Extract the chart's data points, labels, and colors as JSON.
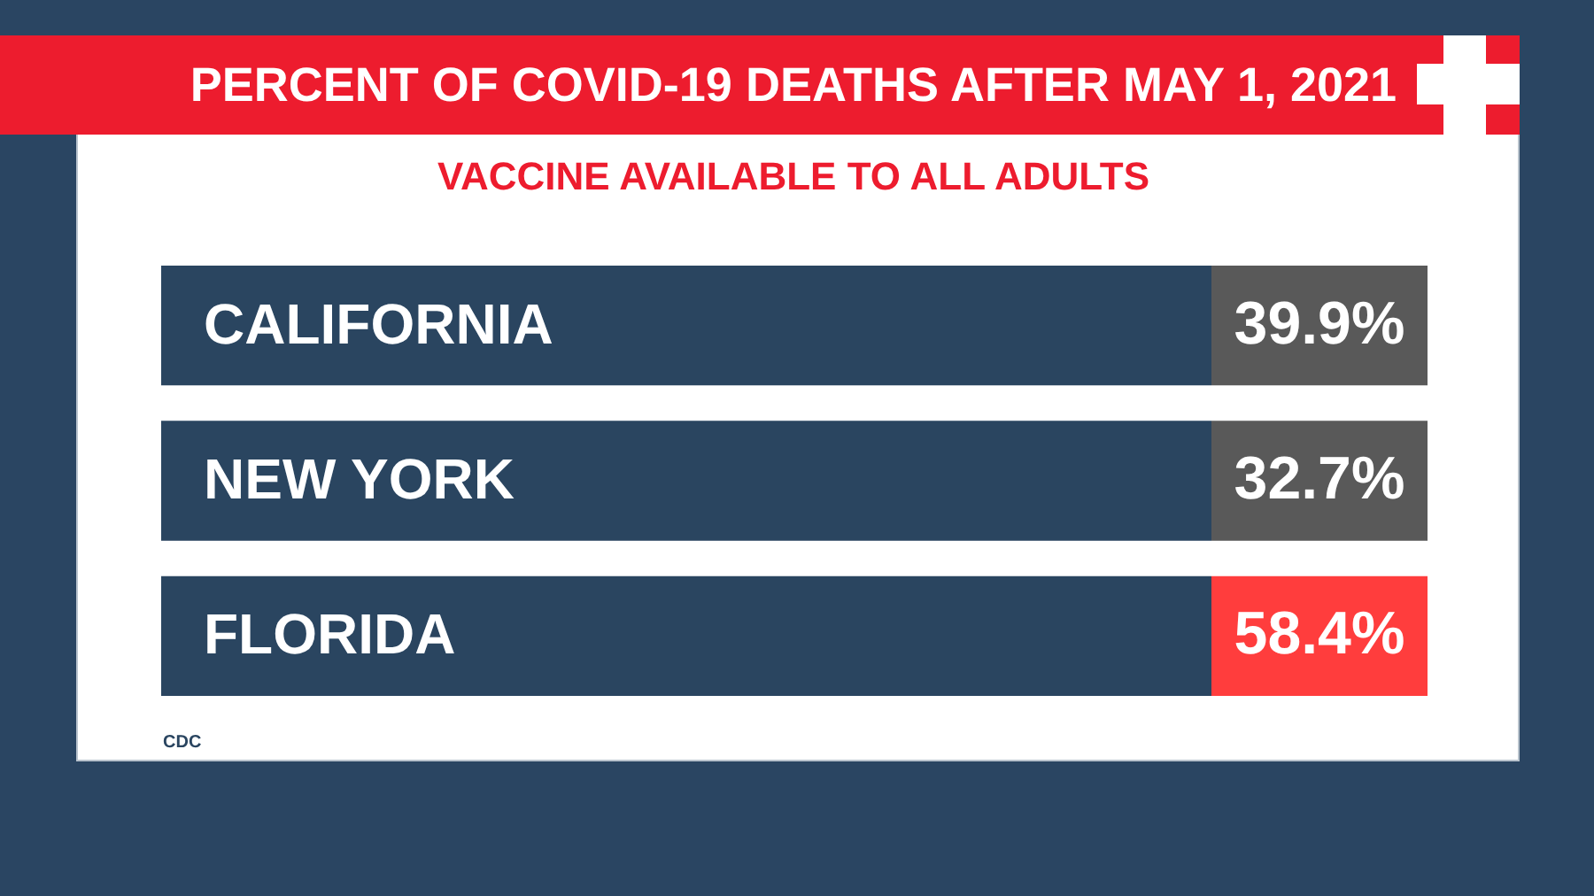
{
  "chart_data": {
    "type": "other",
    "title": "PERCENT OF COVID-19 DEATHS AFTER MAY 1, 2021",
    "subtitle": "VACCINE AVAILABLE TO ALL ADULTS",
    "categories": [
      "CALIFORNIA",
      "NEW YORK",
      "FLORIDA"
    ],
    "values": [
      39.9,
      32.7,
      58.4
    ],
    "value_labels": [
      "39.9%",
      "32.7%",
      "58.4%"
    ],
    "color": "#2a4560",
    "colors": [
      "#595959",
      "#595959",
      "#ff3d3d"
    ],
    "annotations": [
      "CDC"
    ]
  }
}
